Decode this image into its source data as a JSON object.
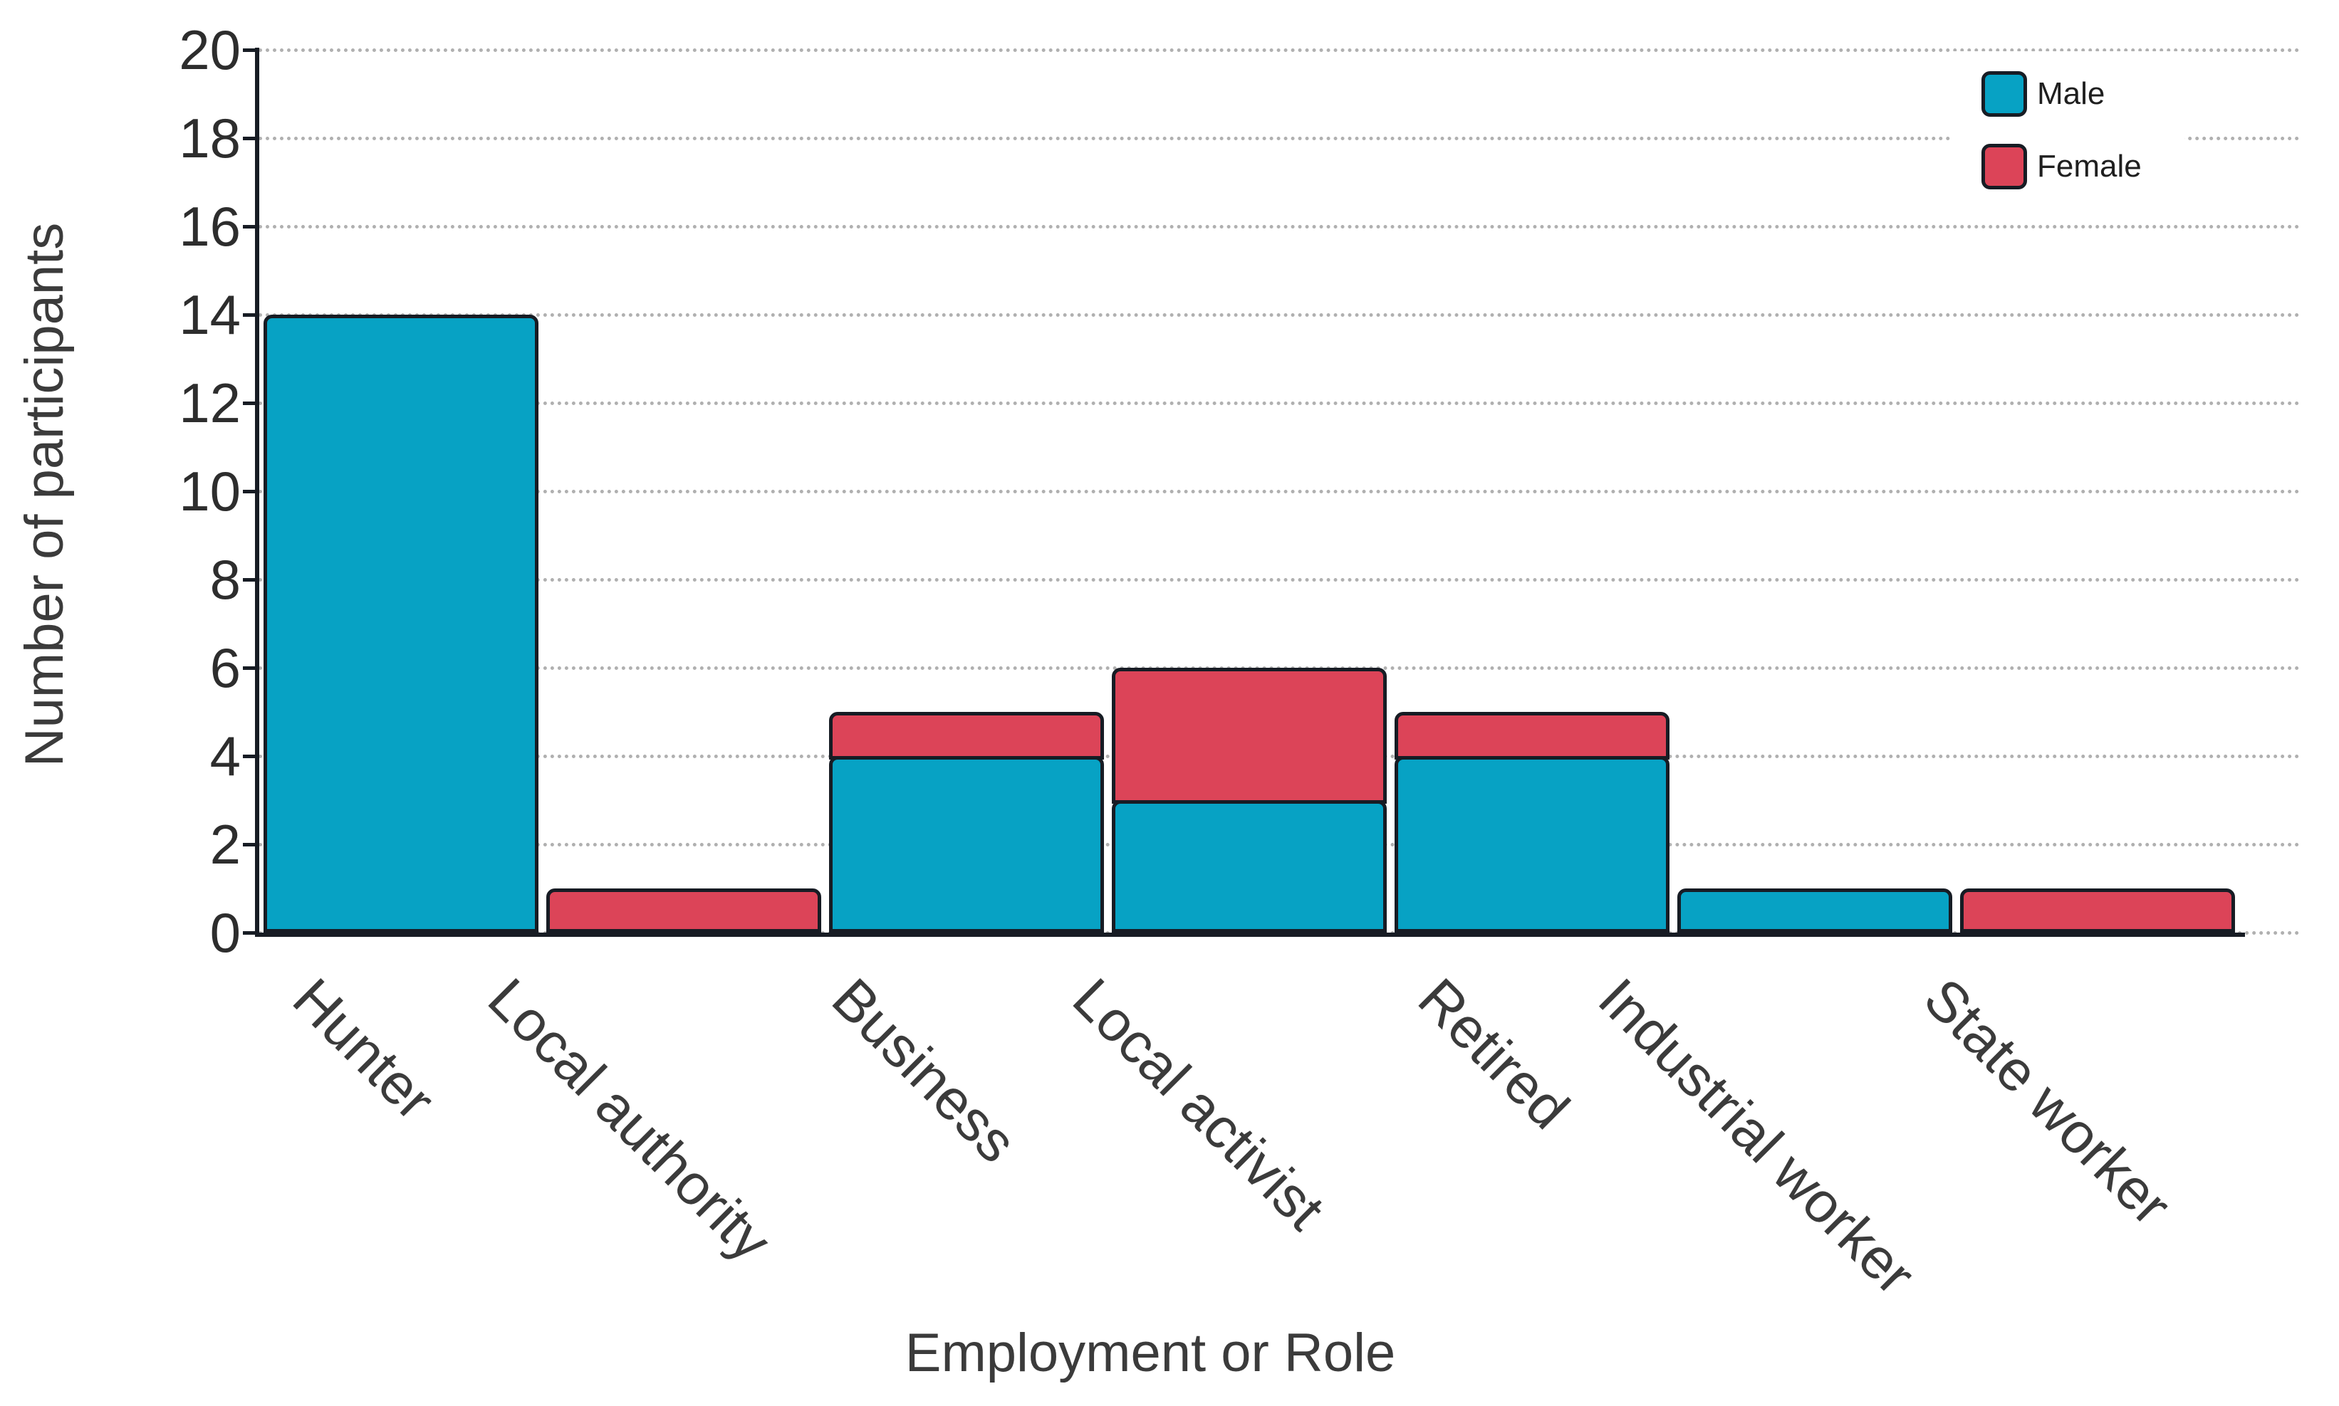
{
  "chart_data": {
    "type": "bar",
    "stacked": true,
    "categories": [
      "Hunter",
      "Local authority",
      "Business",
      "Local activist",
      "Retired",
      "Industrial worker",
      "State worker"
    ],
    "series": [
      {
        "name": "Male",
        "color": "#07a2c4",
        "values": [
          14,
          0,
          4,
          3,
          4,
          1,
          0
        ]
      },
      {
        "name": "Female",
        "color": "#dc4458",
        "values": [
          0,
          1,
          1,
          3,
          1,
          0,
          1
        ]
      }
    ],
    "title": "",
    "xlabel": "Employment or Role",
    "ylabel": "Number of participants",
    "ylim": [
      0,
      20
    ],
    "ytick_step": 2,
    "yticks": [
      0,
      2,
      4,
      6,
      8,
      10,
      12,
      14,
      16,
      18,
      20
    ],
    "grid": "horizontal-dotted",
    "legend": {
      "position": "top-right",
      "items": [
        "Male",
        "Female"
      ]
    }
  },
  "colors": {
    "axis": "#171c24",
    "grid": "#b0b0b0",
    "tick_text": "#2d2d2d",
    "title_text": "#3b3b3b",
    "legend_text": "#1f1f1f",
    "background": "#ffffff",
    "male": "#07a2c4",
    "female": "#dc4458"
  }
}
